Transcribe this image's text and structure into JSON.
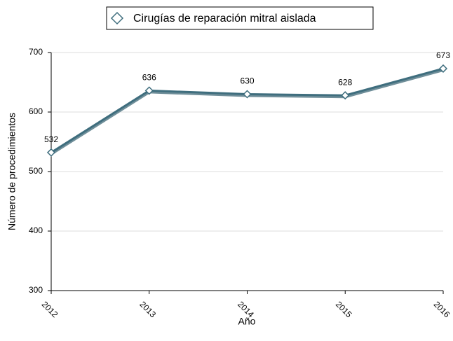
{
  "chart_data": {
    "type": "line",
    "x_label": "Año",
    "y_label": "Número de procedimientos",
    "categories": [
      "2012",
      "2013",
      "2014",
      "2015",
      "2016"
    ],
    "series": [
      {
        "name": "Cirugías de reparación mitral aislada",
        "color": "#3f6e7e",
        "values": [
          532,
          636,
          630,
          628,
          673
        ]
      }
    ],
    "ylim": [
      300,
      700
    ],
    "yticks": [
      300,
      400,
      500,
      600,
      700
    ],
    "grid": true,
    "legend": "top"
  }
}
